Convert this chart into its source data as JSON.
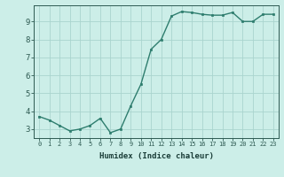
{
  "x": [
    0,
    1,
    2,
    3,
    4,
    5,
    6,
    7,
    8,
    9,
    10,
    11,
    12,
    13,
    14,
    15,
    16,
    17,
    18,
    19,
    20,
    21,
    22,
    23
  ],
  "y": [
    3.7,
    3.5,
    3.2,
    2.9,
    3.0,
    3.2,
    3.6,
    2.8,
    3.0,
    4.3,
    5.5,
    7.45,
    8.0,
    9.3,
    9.55,
    9.5,
    9.4,
    9.35,
    9.35,
    9.5,
    9.0,
    9.0,
    9.4,
    9.4
  ],
  "xlabel": "Humidex (Indice chaleur)",
  "xlim": [
    -0.5,
    23.5
  ],
  "ylim": [
    2.5,
    9.9
  ],
  "yticks": [
    3,
    4,
    5,
    6,
    7,
    8,
    9
  ],
  "xticks": [
    0,
    1,
    2,
    3,
    4,
    5,
    6,
    7,
    8,
    9,
    10,
    11,
    12,
    13,
    14,
    15,
    16,
    17,
    18,
    19,
    20,
    21,
    22,
    23
  ],
  "line_color": "#2e7d6e",
  "marker": "s",
  "marker_size": 2.0,
  "bg_color": "#cceee8",
  "grid_color": "#aad4ce",
  "tick_color": "#2e5a52",
  "label_color": "#1a3d38",
  "line_width": 1.0,
  "xlabel_fontsize": 6.5,
  "tick_fontsize_x": 5.0,
  "tick_fontsize_y": 6.5
}
